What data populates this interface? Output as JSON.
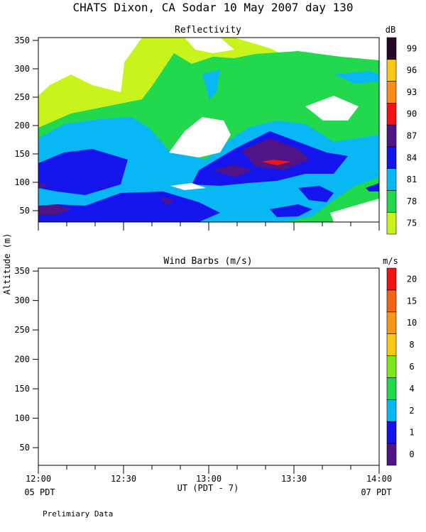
{
  "figure": {
    "title": "CHATS Dixon, CA  Sodar  10 May 2007  day 130",
    "ylabel": "Altitude (m)",
    "xlabel": "UT  (PDT - 7)",
    "left_time_note": "05 PDT",
    "right_time_note": "07 PDT",
    "footer": "Prelimiary Data"
  },
  "chart_data": [
    {
      "type": "heatmap",
      "title": "Reflectivity",
      "x_tick_labels": [
        "12:00",
        "12:30",
        "13:00",
        "13:30",
        "14:00"
      ],
      "x_range": [
        "12:00",
        "14:00"
      ],
      "y_ticks": [
        50,
        100,
        150,
        200,
        250,
        300,
        350
      ],
      "ylim": [
        30,
        355
      ],
      "colorbar": {
        "unit": "dB",
        "levels": [
          75,
          78,
          81,
          84,
          87,
          90,
          93,
          96,
          99
        ],
        "colors": [
          "#c8f41c",
          "#22d84c",
          "#08b8f4",
          "#1414ec",
          "#501487",
          "#f01414",
          "#fb8c14",
          "#fcc814",
          "#260828"
        ]
      },
      "approx_field_dB_by_altitude": {
        "50": 80,
        "100": 83,
        "150": 85,
        "200": 80,
        "250": 77,
        "300": 77,
        "350": 75
      },
      "peak_value_dB": 90,
      "peak_location": {
        "time": "13:25",
        "altitude_m": 140
      }
    },
    {
      "type": "scatter",
      "title": "Wind Barbs (m/s)",
      "x_tick_labels": [
        "12:00",
        "12:30",
        "13:00",
        "13:30",
        "14:00"
      ],
      "x_range": [
        "12:00",
        "14:00"
      ],
      "y_ticks": [
        50,
        100,
        150,
        200,
        250,
        300,
        350
      ],
      "ylim": [
        20,
        355
      ],
      "points": [],
      "colorbar": {
        "unit": "m/s",
        "levels": [
          0,
          1,
          2,
          4,
          6,
          8,
          10,
          15,
          20
        ],
        "colors": [
          "#501487",
          "#1414ec",
          "#08b8f4",
          "#22d84c",
          "#7ce81c",
          "#fcc814",
          "#fb9614",
          "#f56414",
          "#f01414"
        ]
      }
    }
  ]
}
